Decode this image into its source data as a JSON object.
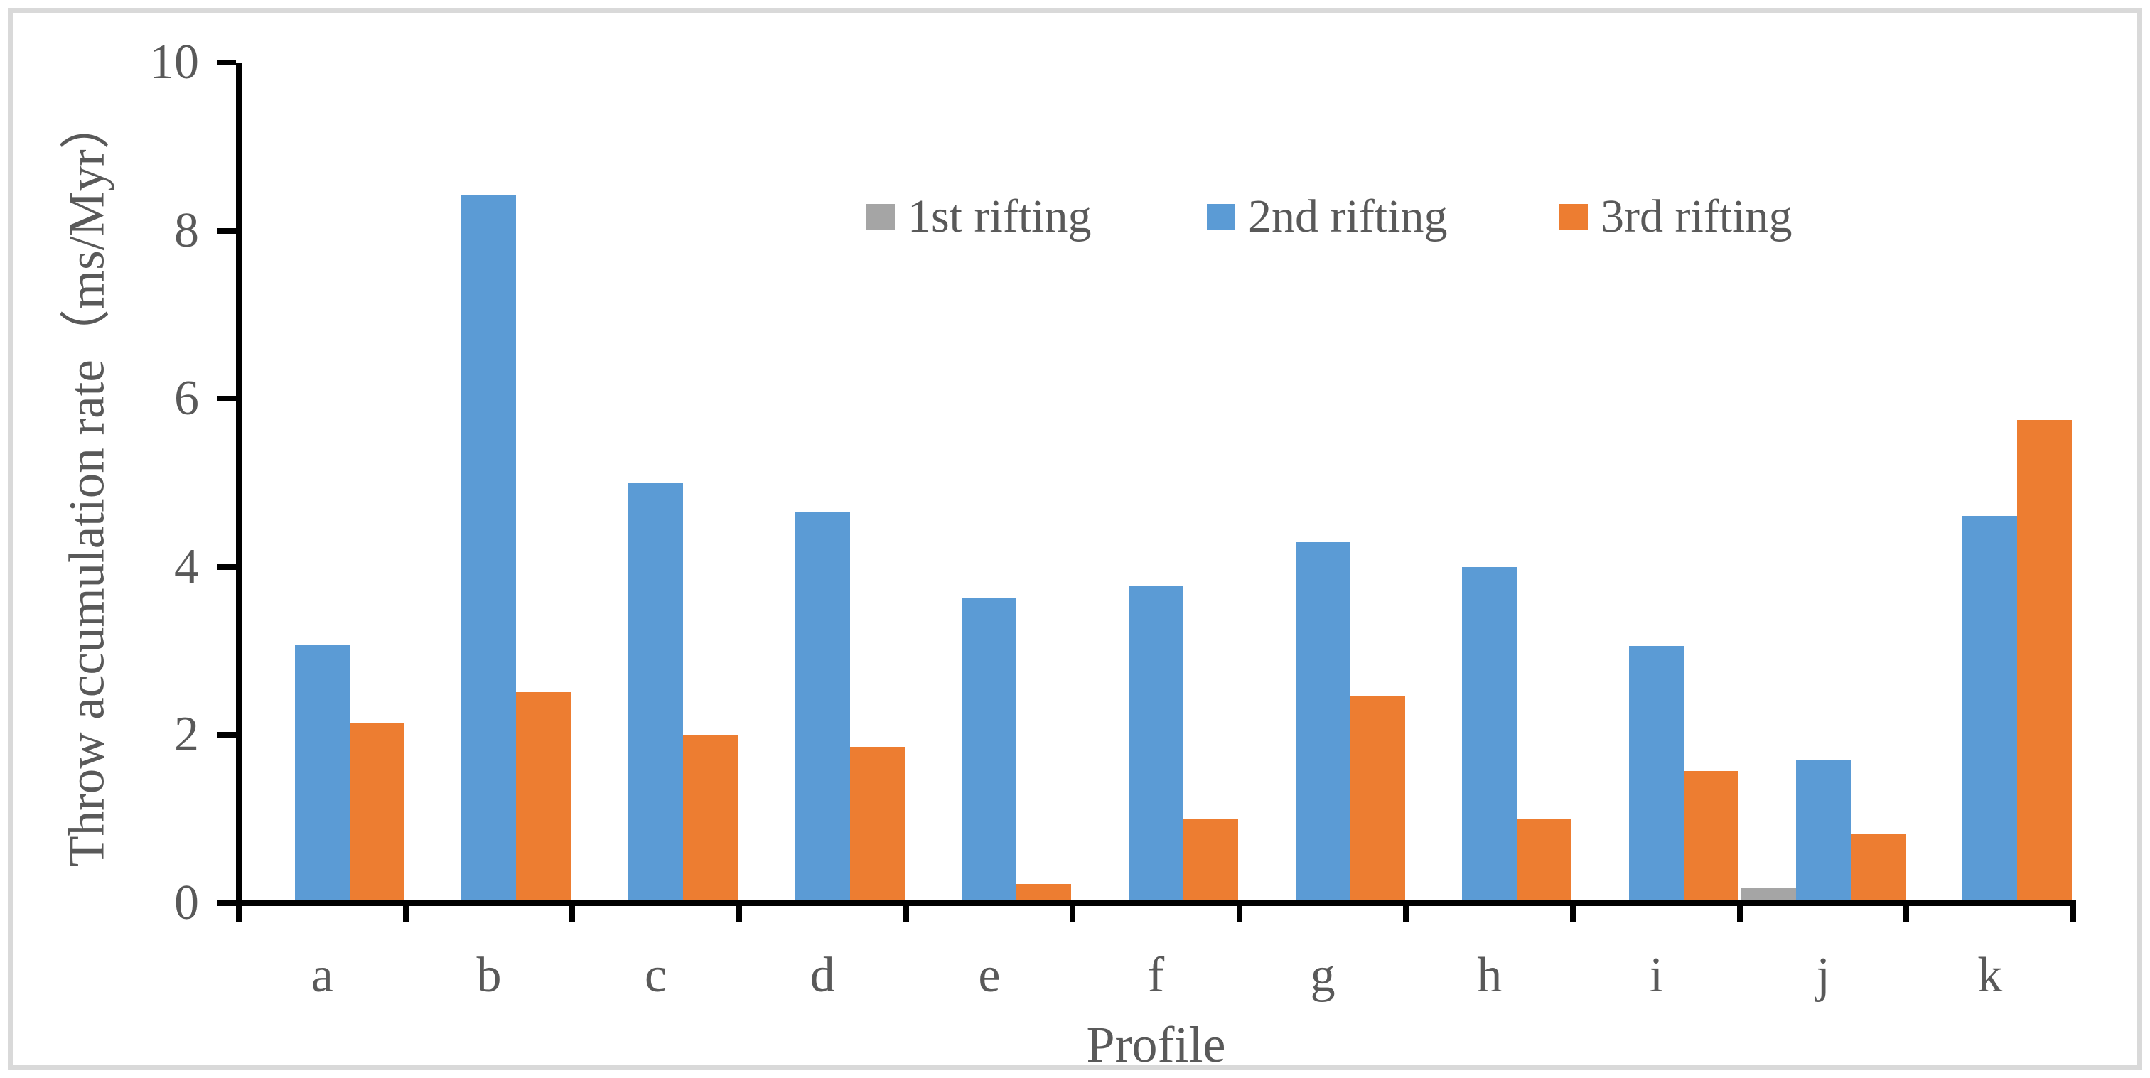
{
  "chart_data": {
    "type": "bar",
    "title": "",
    "xlabel": "Profile",
    "ylabel": "Throw accumulation rate（ms/Myr）",
    "categories": [
      "a",
      "b",
      "c",
      "d",
      "e",
      "f",
      "g",
      "h",
      "i",
      "j",
      "k"
    ],
    "series": [
      {
        "name": "1st rifting",
        "color": "#A5A5A5",
        "values": [
          0,
          0,
          0,
          0,
          0,
          0,
          0,
          0,
          0,
          0.18,
          0
        ]
      },
      {
        "name": "2nd rifting",
        "color": "#5B9BD5",
        "values": [
          3.08,
          8.43,
          5.0,
          4.65,
          3.63,
          3.78,
          4.29,
          4.0,
          3.06,
          1.7,
          4.61
        ]
      },
      {
        "name": "3rd rifting",
        "color": "#ED7D31",
        "values": [
          2.15,
          2.51,
          2.0,
          1.86,
          0.23,
          1.0,
          2.46,
          1.0,
          1.57,
          0.82,
          5.75
        ]
      }
    ],
    "ylim": [
      0,
      10
    ],
    "yticks": [
      0,
      2,
      4,
      6,
      8,
      10
    ],
    "grid": false,
    "legend_position": "top-center-inside",
    "legend_entries": [
      "1st rifting",
      "2nd rifting",
      "3rd rifting"
    ]
  },
  "styles": {
    "axis_color": "#000000",
    "text_color": "#595959",
    "frame_color": "#D9D9D9",
    "background": "#FFFFFF",
    "series_colors": {
      "first": "#A5A5A5",
      "second": "#5B9BD5",
      "third": "#ED7D31"
    }
  }
}
